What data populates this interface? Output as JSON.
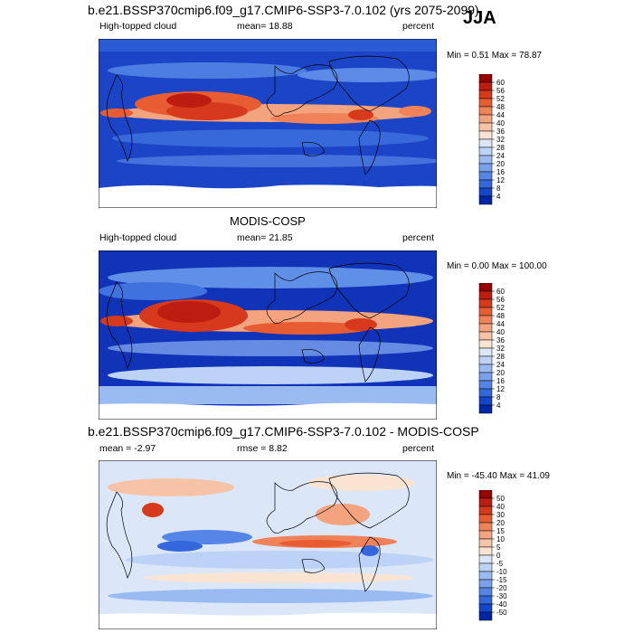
{
  "season": "JJA",
  "chart_data": [
    {
      "type": "heatmap",
      "title": "b.e21.BSSP370cmip6.f09_g17.CMIP6-SSP3-7.0.102 (yrs 2075-2099)",
      "left_label": "High-topped cloud",
      "center_label": "mean=  18.88",
      "units": "percent",
      "stats": "Min =   0.51 Max =  78.87",
      "mean": 18.88,
      "min": 0.51,
      "max": 78.87,
      "colorbar": {
        "levels": [
          "60",
          "56",
          "52",
          "48",
          "44",
          "40",
          "36",
          "32",
          "28",
          "24",
          "20",
          "16",
          "12",
          "8",
          "4"
        ],
        "colors": [
          "#980000",
          "#bd1d10",
          "#d6391c",
          "#e85c34",
          "#f0825a",
          "#f4a37f",
          "#f7c3a6",
          "#fbe3d2",
          "#dbe6f8",
          "#bcd2f6",
          "#9abbf2",
          "#7aa1ec",
          "#5585e6",
          "#3466dc",
          "#1446c9",
          "#0026a8"
        ]
      }
    },
    {
      "type": "heatmap",
      "title": "MODIS-COSP",
      "left_label": "High-topped cloud",
      "center_label": "mean=  21.85",
      "units": "percent",
      "stats": "Min =   0.00 Max = 100.00",
      "mean": 21.85,
      "min": 0.0,
      "max": 100.0,
      "colorbar": {
        "levels": [
          "60",
          "56",
          "52",
          "48",
          "44",
          "40",
          "36",
          "32",
          "28",
          "24",
          "20",
          "16",
          "12",
          "8",
          "4"
        ],
        "colors": [
          "#980000",
          "#bd1d10",
          "#d6391c",
          "#e85c34",
          "#f0825a",
          "#f4a37f",
          "#f7c3a6",
          "#fbe3d2",
          "#dbe6f8",
          "#bcd2f6",
          "#9abbf2",
          "#7aa1ec",
          "#5585e6",
          "#3466dc",
          "#1446c9",
          "#0026a8"
        ]
      }
    },
    {
      "type": "heatmap",
      "title": "b.e21.BSSP370cmip6.f09_g17.CMIP6-SSP3-7.0.102 - MODIS-COSP",
      "left_label": "mean =  -2.97",
      "center_label": "rmse =   8.82",
      "units": "percent",
      "stats": "Min = -45.40 Max =  41.09",
      "mean": -2.97,
      "rmse": 8.82,
      "min": -45.4,
      "max": 41.09,
      "colorbar": {
        "levels": [
          "50",
          "40",
          "30",
          "20",
          "15",
          "10",
          "5",
          "0",
          "-5",
          "-10",
          "-15",
          "-20",
          "-30",
          "-40",
          "-50"
        ],
        "colors": [
          "#980000",
          "#bd1d10",
          "#d6391c",
          "#e85c34",
          "#f0825a",
          "#f4a37f",
          "#f7c3a6",
          "#fbe3d2",
          "#dbe6f8",
          "#bcd2f6",
          "#9abbf2",
          "#7aa1ec",
          "#5585e6",
          "#3466dc",
          "#1446c9",
          "#0026a8"
        ]
      }
    }
  ]
}
